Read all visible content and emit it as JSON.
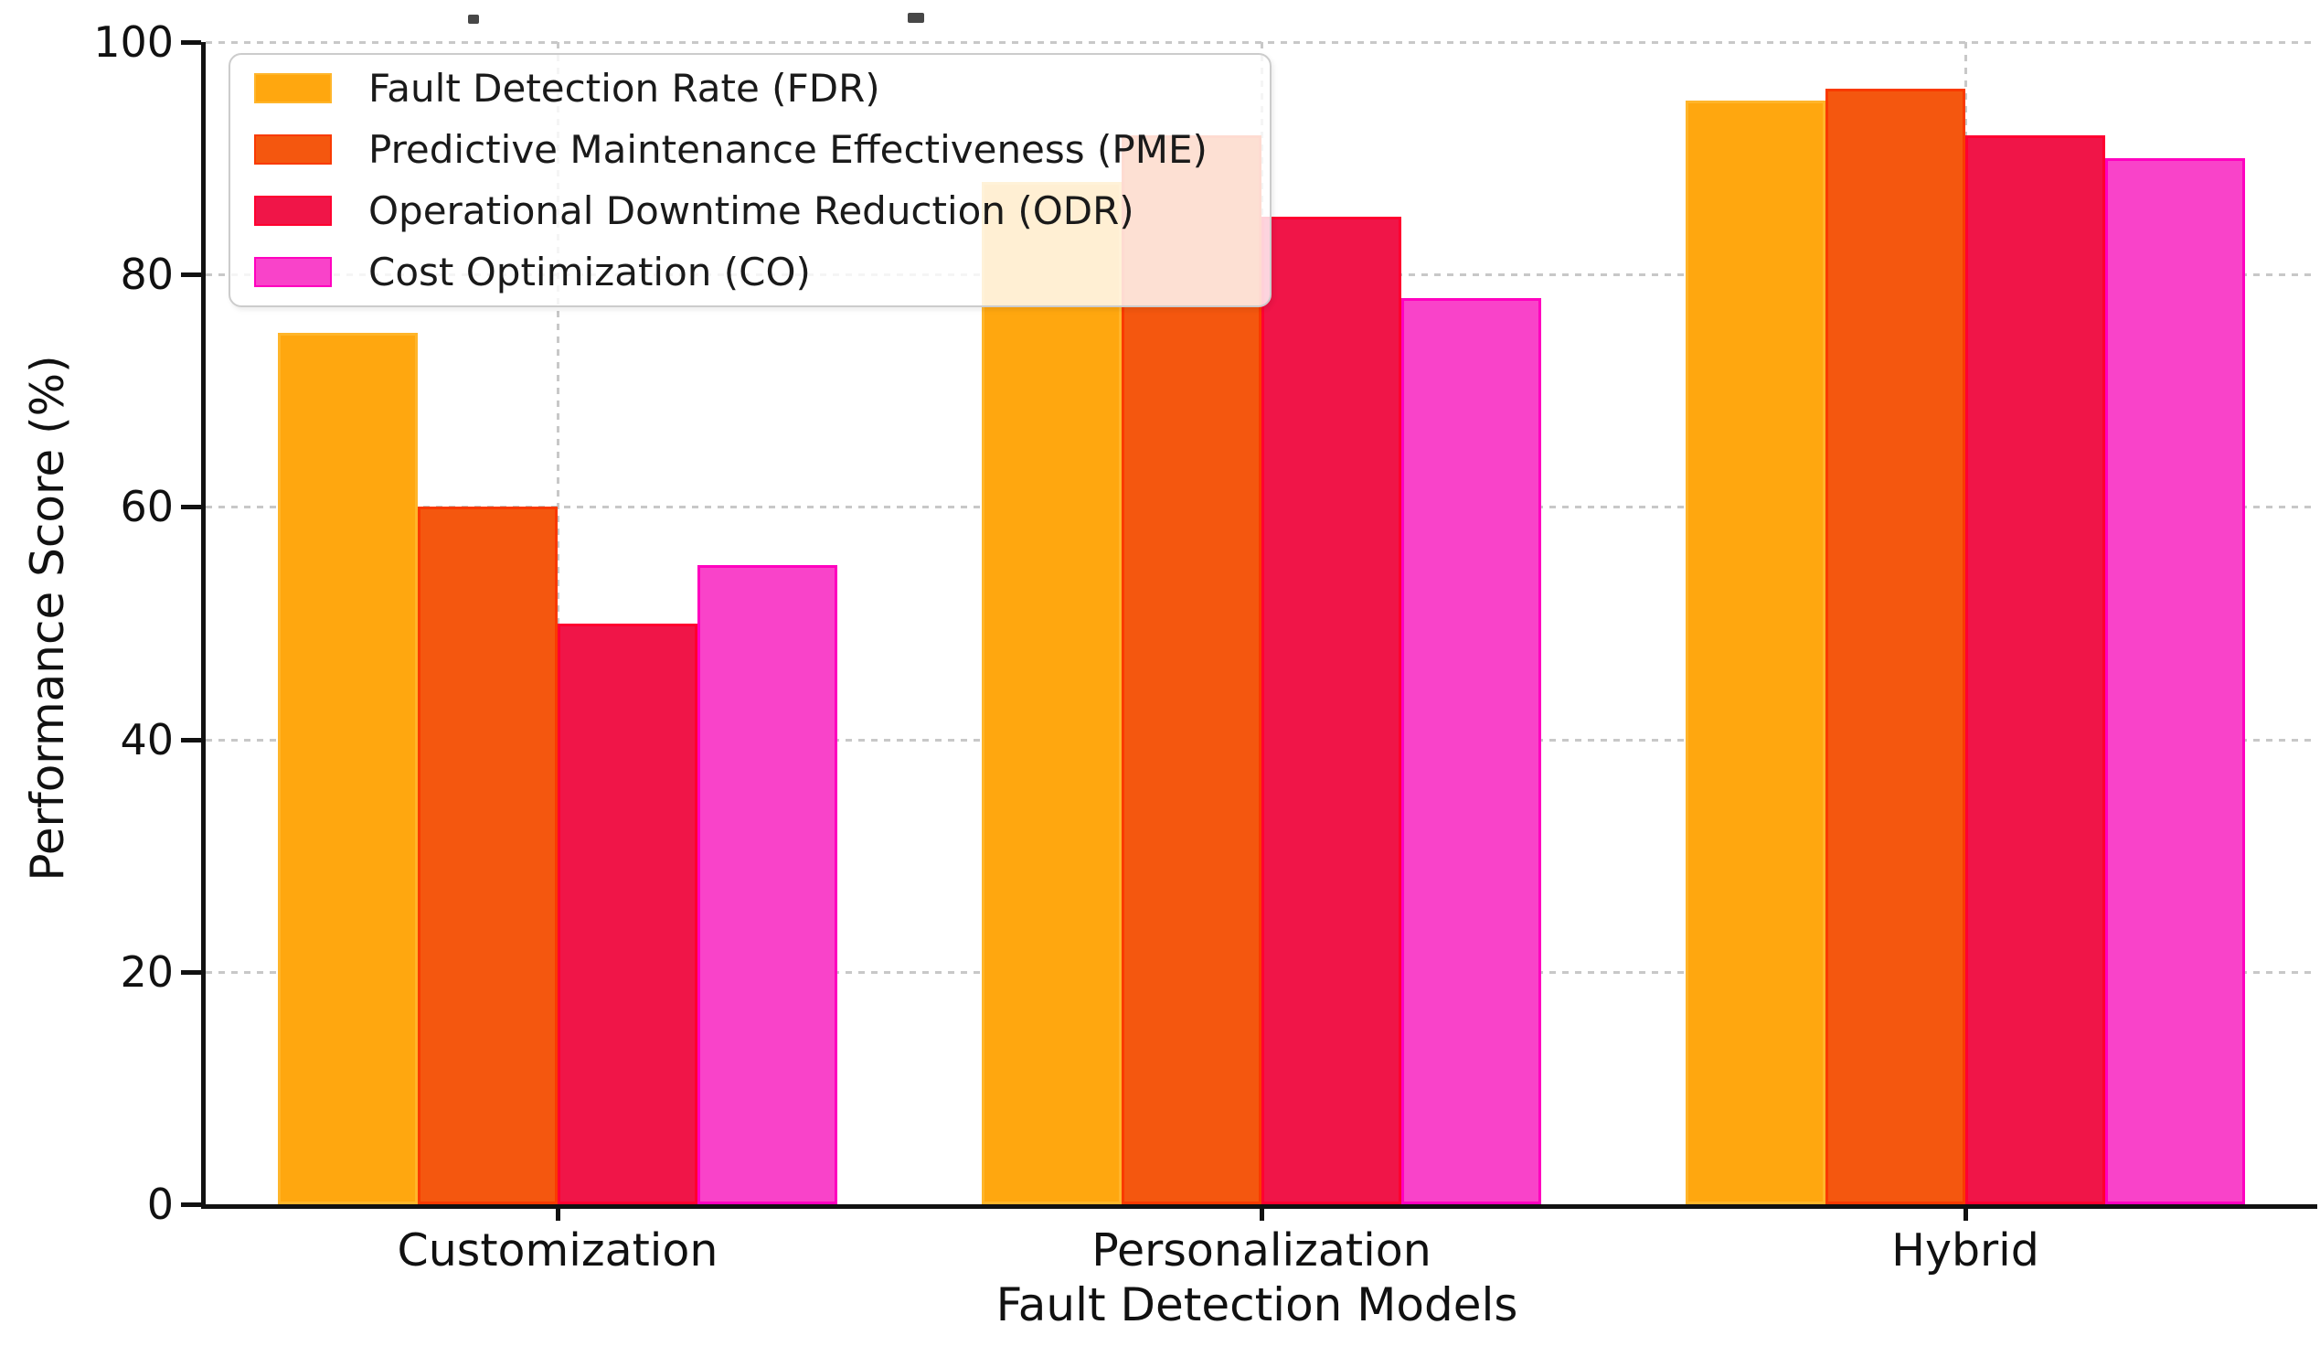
{
  "chart_data": {
    "type": "bar",
    "title": "",
    "xlabel": "Fault Detection Models",
    "ylabel": "Performance Score (%)",
    "categories": [
      "Customization",
      "Personalization",
      "Hybrid"
    ],
    "series": [
      {
        "name": "Fault Detection Rate (FDR)",
        "color": "#FFA70F",
        "edge_color": "#FFB52A",
        "values": [
          75,
          88,
          95
        ]
      },
      {
        "name": "Predictive Maintenance Effectiveness (PME)",
        "color": "#F4570F",
        "edge_color": "#F93A00",
        "values": [
          60,
          92,
          96
        ]
      },
      {
        "name": "Operational Downtime Reduction (ODR)",
        "color": "#F01548",
        "edge_color": "#FF0030",
        "values": [
          50,
          85,
          92
        ]
      },
      {
        "name": "Cost Optimization (CO)",
        "color": "#F943C9",
        "edge_color": "#FF00BF",
        "values": [
          55,
          78,
          90
        ]
      }
    ],
    "ylim": [
      0,
      100
    ],
    "yticks": [
      0,
      20,
      40,
      60,
      80,
      100
    ],
    "grid": true,
    "grid_style": "dotted",
    "legend_position": "upper left",
    "colors_note": {
      "grid": "#c8c8c8",
      "axis": "#111111",
      "legend_border": "#cccccc",
      "legend_bg_alpha": 0.82
    }
  }
}
